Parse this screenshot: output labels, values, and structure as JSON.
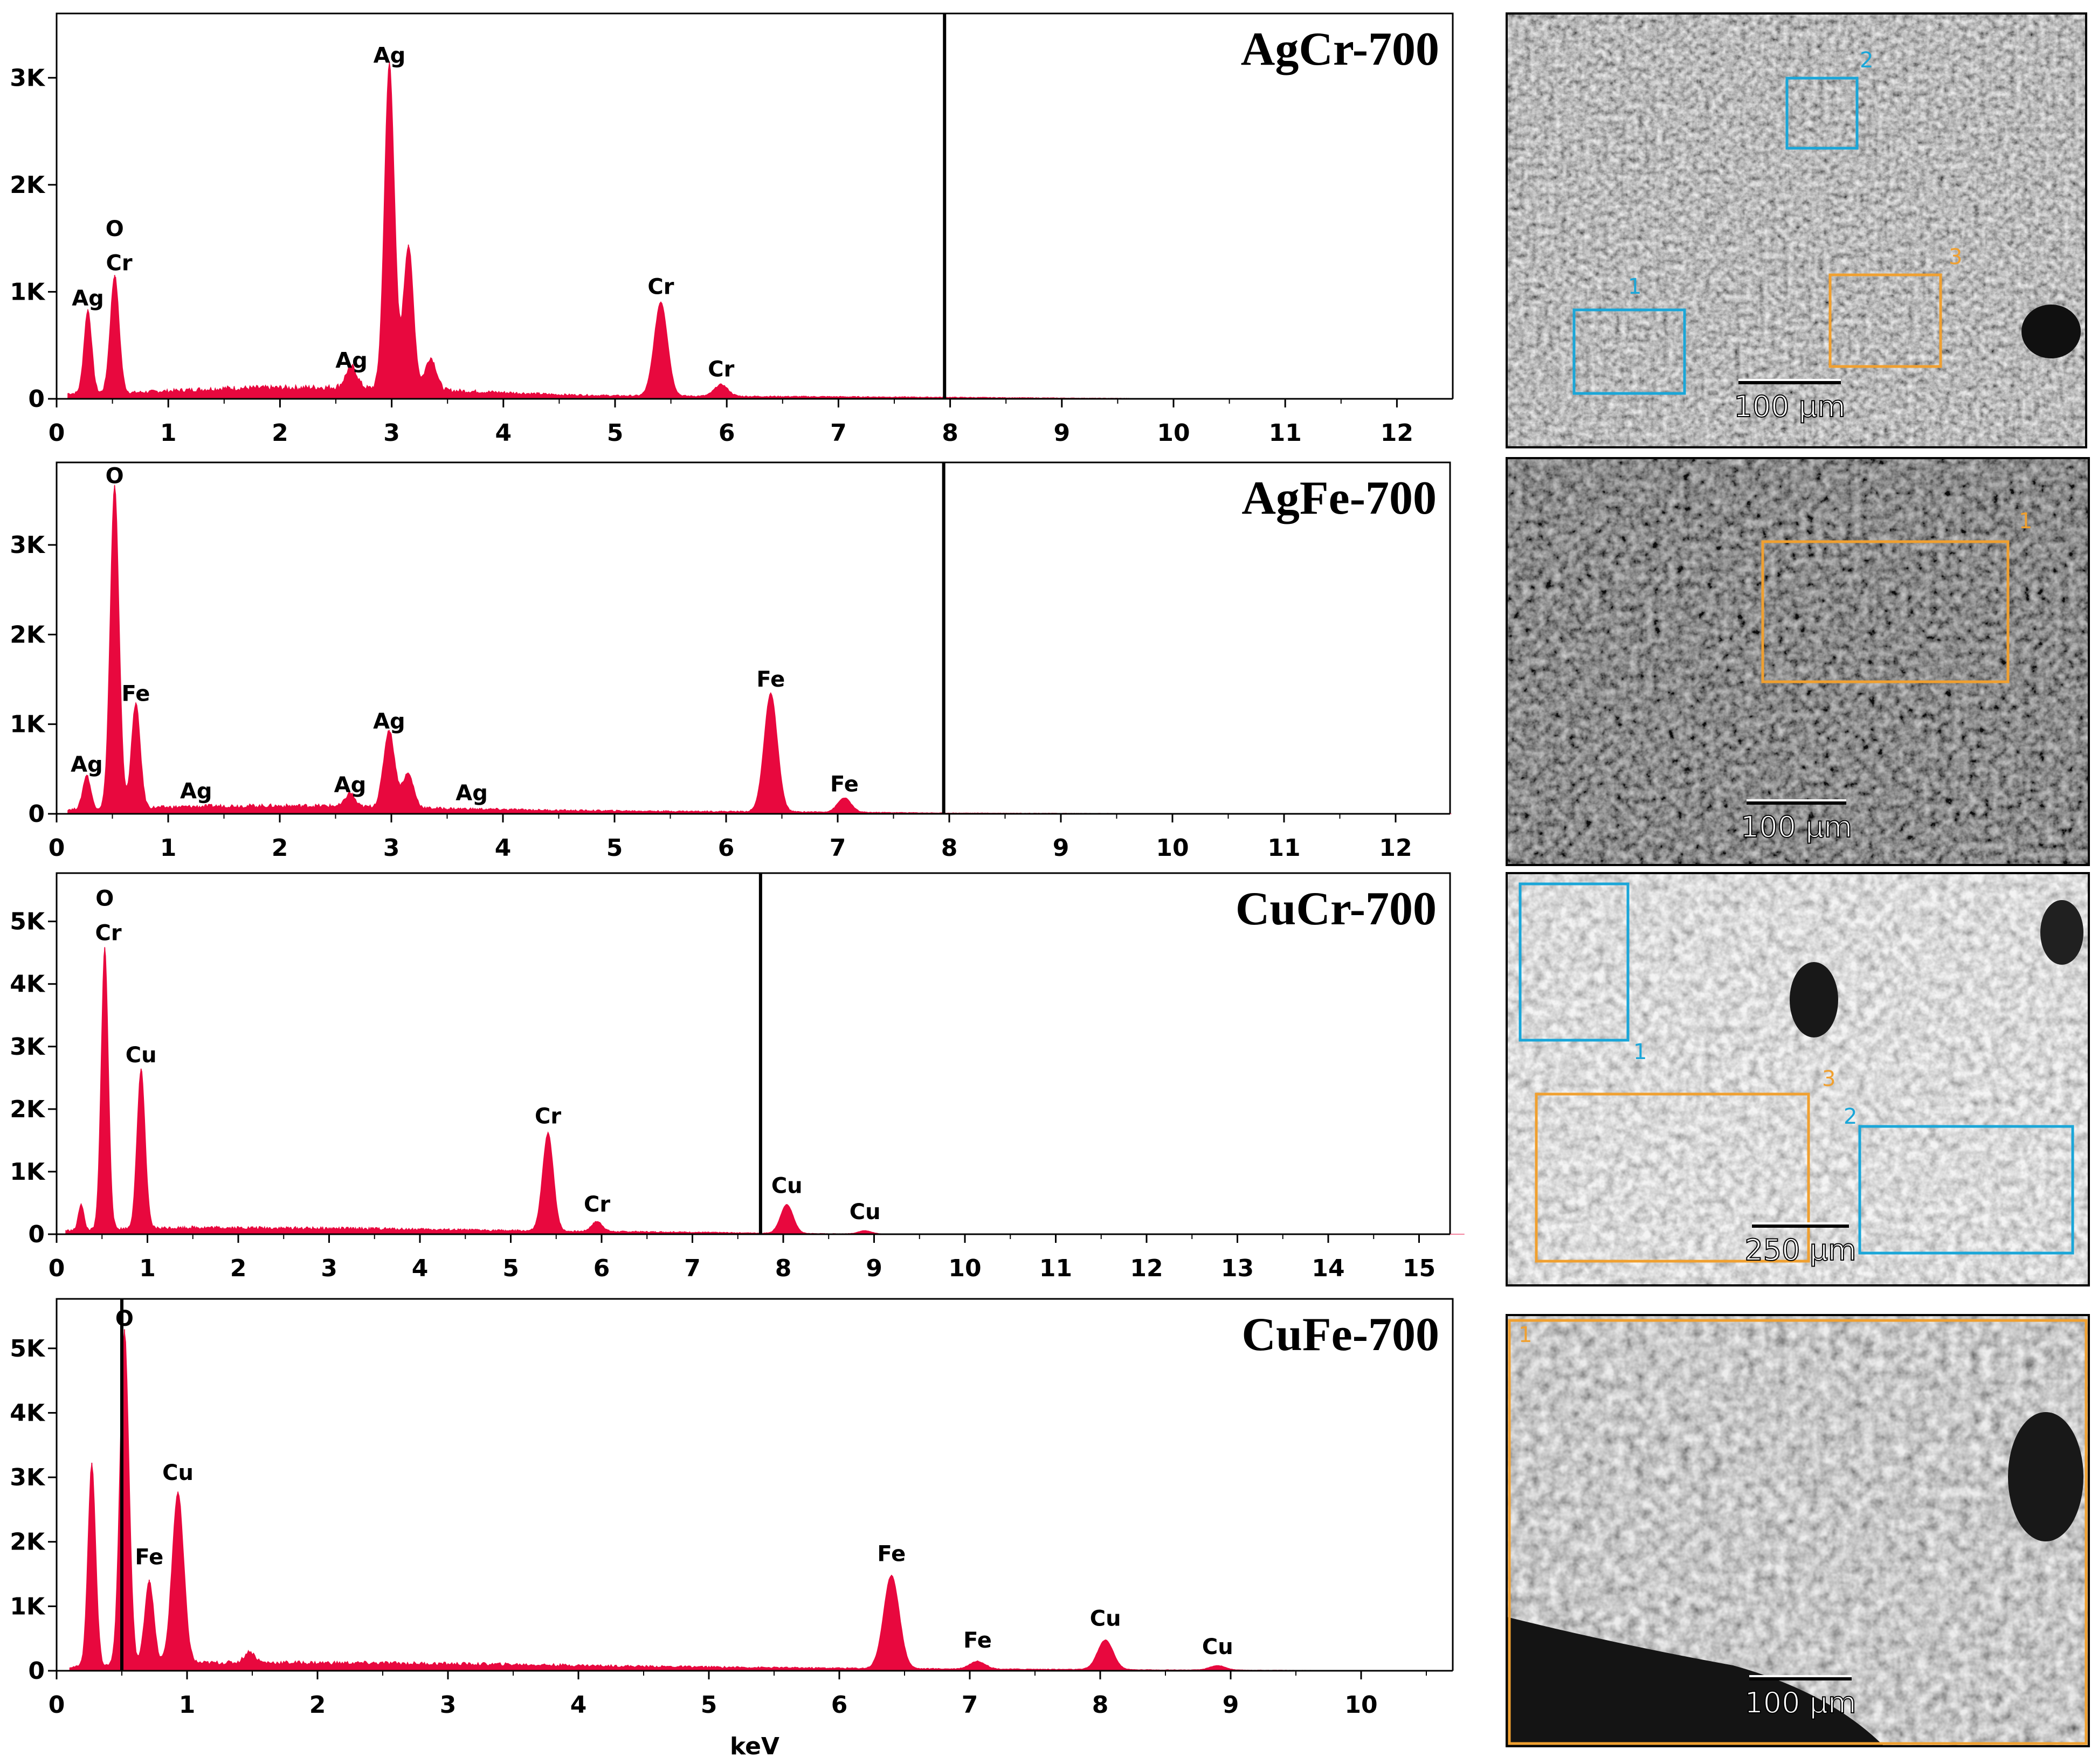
{
  "colors": {
    "spectrum": "#e8083e",
    "axis": "#000000",
    "box_blue": "#1aa6d8",
    "box_orange": "#f0a030"
  },
  "chart_data": [
    {
      "type": "area",
      "title": "AgCr-700",
      "xlabel": "",
      "ylabel": "",
      "xlim": [
        0,
        12.5
      ],
      "ylim": [
        0,
        3500
      ],
      "xticks": [
        "0",
        "1",
        "2",
        "3",
        "4",
        "5",
        "6",
        "7",
        "8",
        "9",
        "10",
        "11",
        "12"
      ],
      "yticks": [
        {
          "v": 0,
          "label": "0"
        },
        {
          "v": 1000,
          "label": "1K"
        },
        {
          "v": 2000,
          "label": "2K"
        },
        {
          "v": 3000,
          "label": "3K"
        }
      ],
      "marker_x": 7.95,
      "baseline": [
        [
          0.1,
          50
        ],
        [
          0.7,
          60
        ],
        [
          1.5,
          100
        ],
        [
          2.5,
          110
        ],
        [
          3.5,
          80
        ],
        [
          4.5,
          40
        ],
        [
          5,
          30
        ],
        [
          6,
          25
        ],
        [
          7,
          20
        ],
        [
          7.95,
          15
        ],
        [
          9,
          8
        ],
        [
          9.6,
          5
        ]
      ],
      "peaks": [
        {
          "x": 0.28,
          "y": 780,
          "w": 0.035
        },
        {
          "x": 0.52,
          "y": 1100,
          "w": 0.04
        },
        {
          "x": 2.64,
          "y": 200,
          "w": 0.05
        },
        {
          "x": 2.98,
          "y": 3050,
          "w": 0.045
        },
        {
          "x": 3.15,
          "y": 1350,
          "w": 0.045
        },
        {
          "x": 3.35,
          "y": 300,
          "w": 0.05
        },
        {
          "x": 5.41,
          "y": 880,
          "w": 0.06
        },
        {
          "x": 5.95,
          "y": 110,
          "w": 0.06
        }
      ],
      "labels": [
        {
          "text": "Ag",
          "x": 0.28,
          "y": 870
        },
        {
          "text": "O",
          "x": 0.52,
          "y": 1520
        },
        {
          "text": "Cr",
          "x": 0.56,
          "y": 1200
        },
        {
          "text": "Ag",
          "x": 2.64,
          "y": 290
        },
        {
          "text": "Ag",
          "x": 2.98,
          "y": 3140
        },
        {
          "text": "Cr",
          "x": 5.41,
          "y": 980
        },
        {
          "text": "Cr",
          "x": 5.95,
          "y": 210
        }
      ]
    },
    {
      "type": "area",
      "title": "AgFe-700",
      "xlabel": "",
      "ylabel": "",
      "xlim": [
        0,
        12.5
      ],
      "ylim": [
        0,
        3800
      ],
      "xticks": [
        "0",
        "1",
        "2",
        "3",
        "4",
        "5",
        "6",
        "7",
        "8",
        "9",
        "10",
        "11",
        "12"
      ],
      "yticks": [
        {
          "v": 0,
          "label": "0"
        },
        {
          "v": 1000,
          "label": "1K"
        },
        {
          "v": 2000,
          "label": "2K"
        },
        {
          "v": 3000,
          "label": "3K"
        }
      ],
      "marker_x": 7.95,
      "baseline": [
        [
          0.1,
          50
        ],
        [
          0.8,
          70
        ],
        [
          1.5,
          90
        ],
        [
          2.5,
          90
        ],
        [
          3.5,
          60
        ],
        [
          4.5,
          40
        ],
        [
          5.5,
          30
        ],
        [
          6.5,
          25
        ],
        [
          7.5,
          15
        ],
        [
          7.95,
          10
        ],
        [
          9.5,
          5
        ]
      ],
      "peaks": [
        {
          "x": 0.27,
          "y": 380,
          "w": 0.035
        },
        {
          "x": 0.52,
          "y": 3600,
          "w": 0.04
        },
        {
          "x": 0.71,
          "y": 1170,
          "w": 0.04
        },
        {
          "x": 2.63,
          "y": 150,
          "w": 0.04
        },
        {
          "x": 2.98,
          "y": 860,
          "w": 0.05
        },
        {
          "x": 3.15,
          "y": 380,
          "w": 0.05
        },
        {
          "x": 6.4,
          "y": 1320,
          "w": 0.06
        },
        {
          "x": 7.06,
          "y": 160,
          "w": 0.06
        }
      ],
      "labels": [
        {
          "text": "Ag",
          "x": 0.27,
          "y": 470
        },
        {
          "text": "O",
          "x": 0.52,
          "y": 3690
        },
        {
          "text": "Fe",
          "x": 0.71,
          "y": 1260
        },
        {
          "text": "Ag",
          "x": 1.25,
          "y": 170
        },
        {
          "text": "Ag",
          "x": 2.63,
          "y": 240
        },
        {
          "text": "Ag",
          "x": 2.98,
          "y": 950
        },
        {
          "text": "Ag",
          "x": 3.72,
          "y": 150
        },
        {
          "text": "Fe",
          "x": 6.4,
          "y": 1420
        },
        {
          "text": "Fe",
          "x": 7.06,
          "y": 250
        }
      ]
    },
    {
      "type": "area",
      "title": "CuCr-700",
      "xlabel": "",
      "ylabel": "",
      "xlim": [
        0,
        15.5
      ],
      "ylim": [
        0,
        5600
      ],
      "xticks": [
        "0",
        "1",
        "2",
        "3",
        "4",
        "5",
        "6",
        "7",
        "8",
        "9",
        "10",
        "11",
        "12",
        "13",
        "14",
        "15"
      ],
      "yticks": [
        {
          "v": 0,
          "label": "0"
        },
        {
          "v": 1000,
          "label": "1K"
        },
        {
          "v": 2000,
          "label": "2K"
        },
        {
          "v": 3000,
          "label": "3K"
        },
        {
          "v": 4000,
          "label": "4K"
        },
        {
          "v": 5000,
          "label": "5K"
        }
      ],
      "marker_x": 7.75,
      "baseline": [
        [
          0.1,
          60
        ],
        [
          0.7,
          90
        ],
        [
          1.5,
          110
        ],
        [
          2.5,
          100
        ],
        [
          3.5,
          90
        ],
        [
          4.5,
          70
        ],
        [
          5.5,
          50
        ],
        [
          6.5,
          40
        ],
        [
          7.2,
          30
        ],
        [
          7.75,
          20
        ],
        [
          8.5,
          10
        ],
        [
          9.5,
          5
        ]
      ],
      "peaks": [
        {
          "x": 0.27,
          "y": 420,
          "w": 0.03
        },
        {
          "x": 0.53,
          "y": 4500,
          "w": 0.04
        },
        {
          "x": 0.93,
          "y": 2550,
          "w": 0.045
        },
        {
          "x": 5.41,
          "y": 1570,
          "w": 0.06
        },
        {
          "x": 5.95,
          "y": 160,
          "w": 0.06
        },
        {
          "x": 8.04,
          "y": 460,
          "w": 0.07
        },
        {
          "x": 8.9,
          "y": 50,
          "w": 0.07
        }
      ],
      "labels": [
        {
          "text": "O",
          "x": 0.53,
          "y": 5250
        },
        {
          "text": "Cr",
          "x": 0.57,
          "y": 4700
        },
        {
          "text": "Cu",
          "x": 0.93,
          "y": 2750
        },
        {
          "text": "Cr",
          "x": 5.41,
          "y": 1770
        },
        {
          "text": "Cr",
          "x": 5.95,
          "y": 360
        },
        {
          "text": "Cu",
          "x": 8.04,
          "y": 660
        },
        {
          "text": "Cu",
          "x": 8.9,
          "y": 240
        }
      ]
    },
    {
      "type": "area",
      "title": "CuFe-700",
      "xlabel": "keV",
      "ylabel": "",
      "xlim": [
        0,
        10.7
      ],
      "ylim": [
        0,
        5600
      ],
      "xticks": [
        "0",
        "1",
        "2",
        "3",
        "4",
        "5",
        "6",
        "7",
        "8",
        "9",
        "10"
      ],
      "yticks": [
        {
          "v": 0,
          "label": "0"
        },
        {
          "v": 1000,
          "label": "1K"
        },
        {
          "v": 2000,
          "label": "2K"
        },
        {
          "v": 3000,
          "label": "3K"
        },
        {
          "v": 4000,
          "label": "4K"
        },
        {
          "v": 5000,
          "label": "5K"
        }
      ],
      "marker_x": 0.5,
      "baseline": [
        [
          0.1,
          60
        ],
        [
          0.8,
          120
        ],
        [
          1.5,
          130
        ],
        [
          2.5,
          120
        ],
        [
          3.5,
          100
        ],
        [
          4.5,
          70
        ],
        [
          5.5,
          50
        ],
        [
          6.5,
          35
        ],
        [
          7.5,
          25
        ],
        [
          8.5,
          15
        ],
        [
          9.5,
          8
        ],
        [
          10,
          5
        ]
      ],
      "peaks": [
        {
          "x": 0.27,
          "y": 3150,
          "w": 0.03
        },
        {
          "x": 0.52,
          "y": 5200,
          "w": 0.035
        },
        {
          "x": 0.71,
          "y": 1300,
          "w": 0.035
        },
        {
          "x": 0.93,
          "y": 2650,
          "w": 0.045
        },
        {
          "x": 1.48,
          "y": 170,
          "w": 0.04
        },
        {
          "x": 6.4,
          "y": 1450,
          "w": 0.06
        },
        {
          "x": 7.06,
          "y": 120,
          "w": 0.06
        },
        {
          "x": 8.04,
          "y": 460,
          "w": 0.06
        },
        {
          "x": 8.9,
          "y": 70,
          "w": 0.06
        }
      ],
      "labels": [
        {
          "text": "O",
          "x": 0.52,
          "y": 5350
        },
        {
          "text": "Fe",
          "x": 0.71,
          "y": 1650
        },
        {
          "text": "Cu",
          "x": 0.93,
          "y": 2960
        },
        {
          "text": "Fe",
          "x": 6.4,
          "y": 1700
        },
        {
          "text": "Fe",
          "x": 7.06,
          "y": 360
        },
        {
          "text": "Cu",
          "x": 8.04,
          "y": 700
        },
        {
          "text": "Cu",
          "x": 8.9,
          "y": 260
        }
      ]
    }
  ],
  "sem_images": [
    {
      "scale_label": "100 µm",
      "boxes": [
        {
          "n": "1",
          "color": "blue"
        },
        {
          "n": "2",
          "color": "blue"
        },
        {
          "n": "3",
          "color": "orange"
        }
      ]
    },
    {
      "scale_label": "100 µm",
      "boxes": [
        {
          "n": "1",
          "color": "orange"
        }
      ]
    },
    {
      "scale_label": "250 µm",
      "boxes": [
        {
          "n": "1",
          "color": "blue"
        },
        {
          "n": "2",
          "color": "blue"
        },
        {
          "n": "3",
          "color": "orange"
        }
      ]
    },
    {
      "scale_label": "100 µm",
      "boxes": [
        {
          "n": "1",
          "color": "orange"
        }
      ]
    }
  ]
}
